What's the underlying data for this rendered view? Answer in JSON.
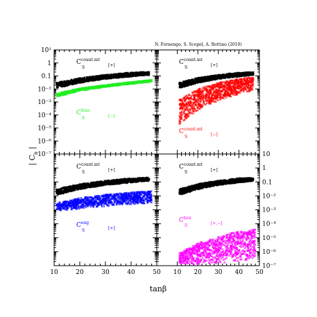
{
  "credit": "N. Fornengo, S. Scopel, A. Bottino  (2010)",
  "xlabel": "tanβ",
  "ylabel": "| C",
  "ylabel_sub": "b",
  "ylabel_end": " |",
  "colors": {
    "black": "#000000",
    "green": "#22ee22",
    "red": "#ff0000",
    "blue": "#0000ff",
    "magenta": "#ff00ff"
  },
  "chart_data": [
    {
      "type": "scatter",
      "panel": "top-left",
      "xlim": [
        10,
        50
      ],
      "ylim": [
        1e-07,
        10
      ],
      "yscale": "log",
      "x_ticks": [],
      "y_ticks": [
        "10¹",
        "1",
        "0.1",
        "10⁻²",
        "10⁻³",
        "10⁻⁴",
        "10⁻⁵",
        "10⁻⁶",
        "10⁻⁷"
      ],
      "series": [
        {
          "name": "C_S^count.mt [+]",
          "color": "black",
          "band": [
            [
              11,
              0.012,
              0.03
            ],
            [
              20,
              0.03,
              0.07
            ],
            [
              30,
              0.06,
              0.12
            ],
            [
              40,
              0.09,
              0.18
            ],
            [
              47,
              0.12,
              0.2
            ]
          ]
        },
        {
          "name": "C_S^bias [-]",
          "color": "green",
          "band": [
            [
              11,
              0.0025,
              0.0045
            ],
            [
              20,
              0.007,
              0.011
            ],
            [
              30,
              0.014,
              0.02
            ],
            [
              40,
              0.024,
              0.034
            ],
            [
              48,
              0.035,
              0.05
            ]
          ]
        }
      ],
      "labels": [
        {
          "main": "C",
          "sup": "count.mt",
          "sub": "S",
          "tag": "[+]",
          "color": "black"
        },
        {
          "main": "C",
          "sup": "bias",
          "sub": "S",
          "tag": "[−]",
          "color": "green"
        }
      ]
    },
    {
      "type": "scatter",
      "panel": "top-right",
      "xlim": [
        0,
        50
      ],
      "ylim": [
        1e-07,
        10
      ],
      "yscale": "log",
      "series": [
        {
          "name": "C_S^count.mt [+]",
          "color": "black",
          "band": [
            [
              11,
              0.012,
              0.03
            ],
            [
              20,
              0.03,
              0.07
            ],
            [
              30,
              0.06,
              0.12
            ],
            [
              40,
              0.09,
              0.18
            ],
            [
              47,
              0.12,
              0.2
            ]
          ]
        },
        {
          "name": "C_S^count.mt [-]",
          "color": "red",
          "band": [
            [
              11,
              2e-05,
              0.0015
            ],
            [
              20,
              0.0002,
              0.01
            ],
            [
              30,
              0.0012,
              0.03
            ],
            [
              40,
              0.004,
              0.06
            ],
            [
              47,
              0.008,
              0.08
            ]
          ]
        }
      ],
      "labels": [
        {
          "main": "C",
          "sup": "count.mt",
          "sub": "S",
          "tag": "[+]",
          "color": "black"
        },
        {
          "main": "C",
          "sup": "count.mt",
          "sub": "S",
          "tag": "[−]",
          "color": "red"
        }
      ]
    },
    {
      "type": "scatter",
      "panel": "bottom-left",
      "xlim": [
        10,
        50
      ],
      "ylim": [
        1e-07,
        10
      ],
      "yscale": "log",
      "x_ticks": [
        "10",
        "20",
        "30",
        "40",
        "50"
      ],
      "series": [
        {
          "name": "C_S^count.mt [+]",
          "color": "black",
          "band": [
            [
              11,
              0.012,
              0.03
            ],
            [
              20,
              0.03,
              0.07
            ],
            [
              30,
              0.06,
              0.12
            ],
            [
              40,
              0.09,
              0.18
            ],
            [
              47,
              0.12,
              0.2
            ]
          ]
        },
        {
          "name": "C_S^eng [+]",
          "color": "blue",
          "band": [
            [
              11,
              0.0008,
              0.003
            ],
            [
              20,
              0.0012,
              0.007
            ],
            [
              30,
              0.0018,
              0.012
            ],
            [
              40,
              0.0025,
              0.018
            ],
            [
              48,
              0.003,
              0.022
            ]
          ]
        }
      ],
      "labels": [
        {
          "main": "C",
          "sup": "count.mt",
          "sub": "S",
          "tag": "[+]",
          "color": "black"
        },
        {
          "main": "C",
          "sup": "eng",
          "sub": "S",
          "tag": "[+]",
          "color": "blue"
        }
      ]
    },
    {
      "type": "scatter",
      "panel": "bottom-right",
      "xlim": [
        0,
        50
      ],
      "ylim": [
        1e-07,
        10
      ],
      "yscale": "log",
      "x_ticks": [
        "10",
        "20",
        "30",
        "40",
        "50"
      ],
      "y_ticks_right": [
        "10",
        "1",
        "0.1",
        "10⁻²",
        "10⁻³",
        "10⁻⁴",
        "10⁻⁵",
        "10⁻⁶",
        "10⁻⁷"
      ],
      "series": [
        {
          "name": "C_S^count.mt [+]",
          "color": "black",
          "band": [
            [
              11,
              0.012,
              0.03
            ],
            [
              20,
              0.03,
              0.07
            ],
            [
              30,
              0.06,
              0.12
            ],
            [
              40,
              0.09,
              0.18
            ],
            [
              47,
              0.12,
              0.2
            ]
          ]
        },
        {
          "name": "C_S^box [+,-]",
          "color": "magenta",
          "band": [
            [
              11,
              1.2e-07,
              8e-07
            ],
            [
              20,
              1.2e-07,
              4e-06
            ],
            [
              30,
              1.5e-07,
              1.2e-05
            ],
            [
              40,
              2e-07,
              3e-05
            ],
            [
              48,
              3e-07,
              4e-05
            ]
          ]
        }
      ],
      "labels": [
        {
          "main": "C",
          "sup": "count.mt",
          "sub": "S",
          "tag": "[+]",
          "color": "black"
        },
        {
          "main": "C",
          "sup": "box",
          "sub": "S",
          "tag": "[+,−]",
          "color": "magenta"
        }
      ]
    }
  ]
}
